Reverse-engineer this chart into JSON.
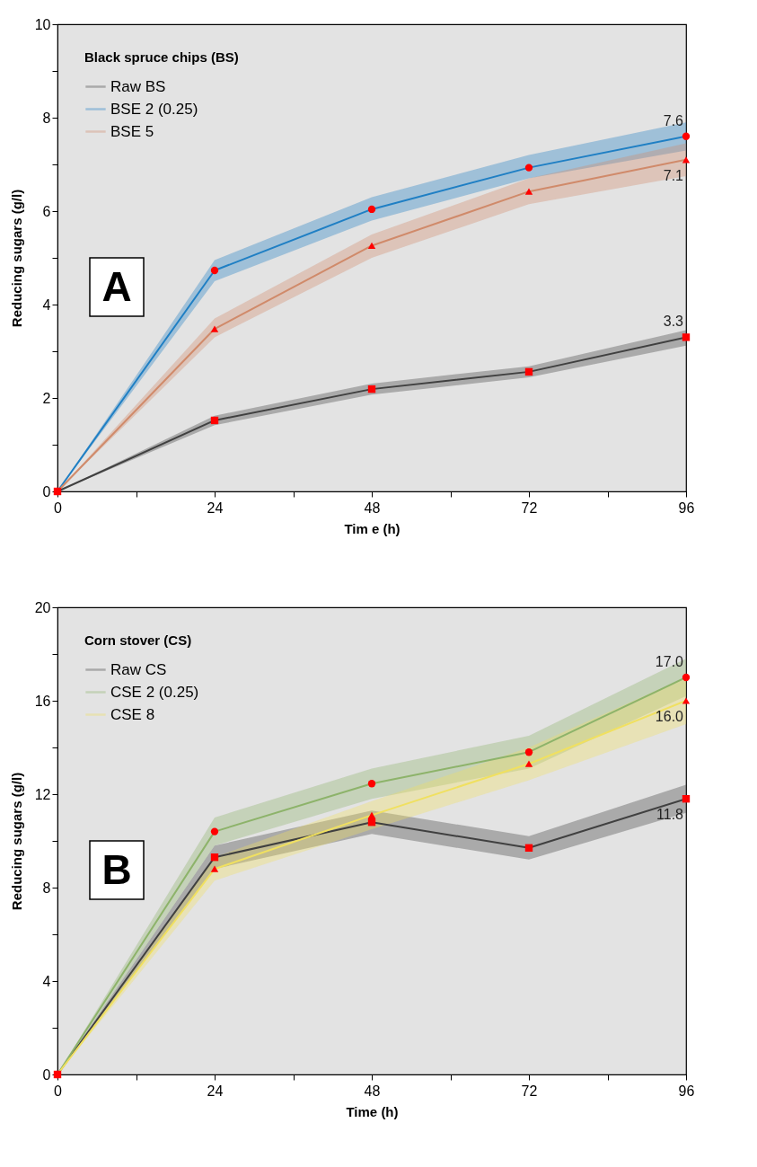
{
  "chart_data": [
    {
      "type": "line",
      "xlabel": "Tim e (h)",
      "ylabel": "Reducing sugars (g/l)",
      "legend_title": "Black spruce chips (BS)",
      "legend": "top left",
      "line_style": "solid",
      "annotations": [
        "A"
      ],
      "x": [
        0,
        24,
        48,
        72,
        96
      ],
      "xlim": [
        0,
        96
      ],
      "ylim": [
        0,
        10
      ],
      "xticks": [
        0,
        {
          "value": 12,
          "label": null
        },
        24,
        {
          "value": 36,
          "label": null
        },
        48,
        {
          "value": 60,
          "label": null
        },
        72,
        {
          "value": 84,
          "label": null
        },
        96
      ],
      "yticks": [
        0,
        {
          "value": 1,
          "label": null
        },
        2,
        {
          "value": 3,
          "label": null
        },
        4,
        {
          "value": 5,
          "label": null
        },
        6,
        {
          "value": 7,
          "label": null
        },
        8,
        {
          "value": 9,
          "label": null
        },
        10
      ],
      "series": [
        {
          "name": "Raw BS",
          "color": "#404040",
          "marker": "square",
          "values": [
            0,
            1.52,
            2.19,
            2.56,
            3.3
          ],
          "lower": [
            0,
            1.42,
            2.07,
            2.44,
            3.12
          ],
          "upper": [
            0,
            1.62,
            2.31,
            2.68,
            3.45
          ],
          "value_labels": [
            null,
            null,
            null,
            null,
            "3.3"
          ]
        },
        {
          "name": "BSE 2 (0.25)",
          "color": "#1f7fc4",
          "marker": "circle",
          "values": [
            0,
            4.73,
            6.04,
            6.93,
            7.6
          ],
          "lower": [
            0,
            4.5,
            5.8,
            6.7,
            7.3
          ],
          "upper": [
            0,
            4.95,
            6.3,
            7.2,
            7.9
          ],
          "value_labels": [
            null,
            null,
            null,
            null,
            "7.6"
          ]
        },
        {
          "name": "BSE 5",
          "color": "#d08a6a",
          "marker": "triangle",
          "values": [
            0,
            3.48,
            5.26,
            6.42,
            7.1
          ],
          "lower": [
            0,
            3.3,
            5.0,
            6.15,
            6.75
          ],
          "upper": [
            0,
            3.7,
            5.5,
            6.7,
            7.45
          ],
          "value_labels": [
            null,
            null,
            null,
            null,
            "7.1"
          ]
        }
      ]
    },
    {
      "type": "line",
      "xlabel": "Time (h)",
      "ylabel": "Reducing sugars (g/l)",
      "legend_title": "Corn stover (CS)",
      "legend": "top left",
      "line_style": "solid",
      "annotations": [
        "B"
      ],
      "x": [
        0,
        24,
        48,
        72,
        96
      ],
      "xlim": [
        0,
        96
      ],
      "ylim": [
        0,
        20
      ],
      "xticks": [
        0,
        {
          "value": 12,
          "label": null
        },
        24,
        {
          "value": 36,
          "label": null
        },
        48,
        {
          "value": 60,
          "label": null
        },
        72,
        {
          "value": 84,
          "label": null
        },
        96
      ],
      "yticks": [
        0,
        {
          "value": 2,
          "label": null
        },
        4,
        {
          "value": 6,
          "label": null
        },
        8,
        {
          "value": 10,
          "label": null
        },
        12,
        {
          "value": 14,
          "label": null
        },
        16,
        {
          "value": 18,
          "label": null
        },
        20
      ],
      "series": [
        {
          "name": "Raw CS",
          "color": "#404040",
          "marker": "square",
          "values": [
            0,
            9.3,
            10.8,
            9.7,
            11.8
          ],
          "lower": [
            0,
            8.8,
            10.3,
            9.2,
            11.2
          ],
          "upper": [
            0,
            9.8,
            11.3,
            10.2,
            12.4
          ],
          "value_labels": [
            null,
            null,
            null,
            null,
            "11.8"
          ]
        },
        {
          "name": "CSE 2 (0.25)",
          "color": "#8db36a",
          "marker": "circle",
          "values": [
            0,
            10.4,
            12.45,
            13.8,
            17.0
          ],
          "lower": [
            0,
            9.8,
            11.8,
            13.1,
            16.2
          ],
          "upper": [
            0,
            11.0,
            13.1,
            14.5,
            17.8
          ],
          "value_labels": [
            null,
            null,
            null,
            null,
            "17.0"
          ]
        },
        {
          "name": "CSE 8",
          "color": "#f0e060",
          "marker": "triangle",
          "values": [
            0,
            8.8,
            11.1,
            13.3,
            16.0
          ],
          "lower": [
            0,
            8.3,
            10.5,
            12.6,
            15.0
          ],
          "upper": [
            0,
            9.3,
            11.7,
            14.0,
            17.0
          ],
          "value_labels": [
            null,
            null,
            null,
            null,
            "16.0"
          ]
        }
      ]
    }
  ]
}
